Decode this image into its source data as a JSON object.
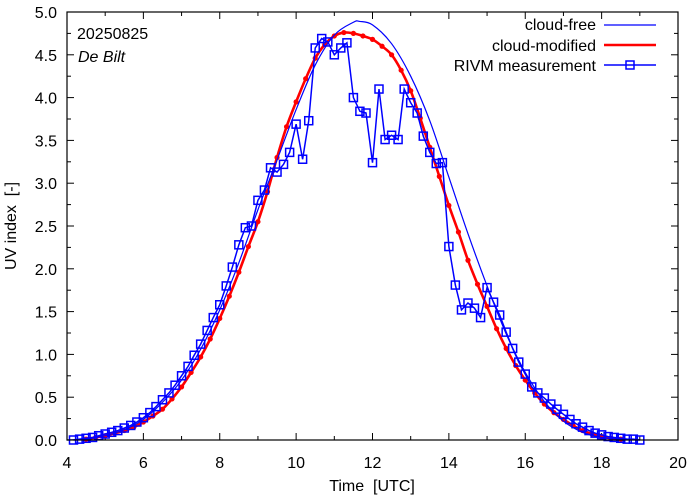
{
  "chart_data": {
    "type": "line",
    "title": "",
    "xlabel": "Time  [UTC]",
    "ylabel": "UV index  [-]",
    "xlim": [
      4,
      20
    ],
    "ylim": [
      0.0,
      5.0
    ],
    "xticks": [
      "4",
      "6",
      "8",
      "10",
      "12",
      "14",
      "16",
      "18",
      "20"
    ],
    "yticks": [
      "0.0",
      "0.5",
      "1.0",
      "1.5",
      "2.0",
      "2.5",
      "3.0",
      "3.5",
      "4.0",
      "4.5",
      "5.0"
    ],
    "grid": false,
    "legend_position": "top-right",
    "annotations": {
      "date": "20250825",
      "location": "De Bilt"
    },
    "colors": {
      "cloud_free": "#0000ff",
      "cloud_modified": "#ff0000",
      "measurement": "#0000ff"
    },
    "series": [
      {
        "name": "cloud-free",
        "style": "line",
        "x": [
          4.0,
          4.5,
          5.0,
          5.5,
          6.0,
          6.5,
          7.0,
          7.5,
          8.0,
          8.5,
          9.0,
          9.5,
          10.0,
          10.5,
          11.0,
          11.5,
          11.67,
          12.0,
          12.5,
          13.0,
          13.5,
          14.0,
          14.5,
          15.0,
          15.5,
          16.0,
          16.5,
          17.0,
          17.5,
          18.0,
          18.5,
          19.0
        ],
        "y": [
          0.0,
          0.01,
          0.05,
          0.12,
          0.24,
          0.44,
          0.7,
          1.06,
          1.52,
          2.07,
          2.69,
          3.27,
          3.86,
          4.38,
          4.73,
          4.88,
          4.89,
          4.85,
          4.63,
          4.25,
          3.73,
          3.07,
          2.41,
          1.8,
          1.24,
          0.79,
          0.45,
          0.22,
          0.09,
          0.03,
          0.01,
          0.0
        ]
      },
      {
        "name": "cloud-modified",
        "style": "line-points",
        "x": [
          4.5,
          4.75,
          5.0,
          5.25,
          5.5,
          5.75,
          6.0,
          6.25,
          6.5,
          6.75,
          7.0,
          7.25,
          7.5,
          7.75,
          8.0,
          8.25,
          8.5,
          8.75,
          9.0,
          9.25,
          9.5,
          9.75,
          10.0,
          10.25,
          10.5,
          10.75,
          11.0,
          11.25,
          11.5,
          11.75,
          12.0,
          12.25,
          12.5,
          12.75,
          13.0,
          13.25,
          13.5,
          13.75,
          14.0,
          14.25,
          14.5,
          14.75,
          15.0,
          15.25,
          15.5,
          15.75,
          16.0,
          16.25,
          16.5,
          16.75,
          17.0,
          17.25,
          17.5,
          17.75,
          18.0,
          18.25,
          18.5
        ],
        "y": [
          0.01,
          0.03,
          0.05,
          0.08,
          0.11,
          0.15,
          0.21,
          0.28,
          0.36,
          0.48,
          0.62,
          0.79,
          0.97,
          1.18,
          1.42,
          1.68,
          1.96,
          2.26,
          2.55,
          2.9,
          3.3,
          3.66,
          3.95,
          4.22,
          4.46,
          4.62,
          4.72,
          4.76,
          4.75,
          4.72,
          4.68,
          4.6,
          4.5,
          4.32,
          4.08,
          3.76,
          3.42,
          3.08,
          2.74,
          2.43,
          2.1,
          1.82,
          1.56,
          1.3,
          1.07,
          0.87,
          0.7,
          0.55,
          0.42,
          0.32,
          0.24,
          0.17,
          0.11,
          0.07,
          0.04,
          0.02,
          0.01
        ]
      },
      {
        "name": "RIVM measurement",
        "style": "line-squares",
        "x": [
          4.17,
          4.33,
          4.5,
          4.67,
          4.83,
          5.0,
          5.17,
          5.33,
          5.5,
          5.67,
          5.83,
          6.0,
          6.17,
          6.33,
          6.5,
          6.67,
          6.83,
          7.0,
          7.17,
          7.33,
          7.5,
          7.67,
          7.83,
          8.0,
          8.17,
          8.33,
          8.5,
          8.67,
          8.83,
          9.0,
          9.17,
          9.33,
          9.5,
          9.67,
          9.83,
          10.0,
          10.17,
          10.33,
          10.5,
          10.67,
          10.83,
          11.0,
          11.17,
          11.33,
          11.5,
          11.67,
          11.83,
          12.0,
          12.17,
          12.33,
          12.5,
          12.67,
          12.83,
          13.0,
          13.17,
          13.33,
          13.5,
          13.67,
          13.83,
          14.0,
          14.17,
          14.33,
          14.5,
          14.67,
          14.83,
          15.0,
          15.17,
          15.33,
          15.5,
          15.67,
          15.83,
          16.0,
          16.17,
          16.33,
          16.5,
          16.67,
          16.83,
          17.0,
          17.17,
          17.33,
          17.5,
          17.67,
          17.83,
          18.0,
          18.17,
          18.33,
          18.5,
          18.67,
          18.83,
          19.0
        ],
        "y": [
          0.0,
          0.01,
          0.02,
          0.03,
          0.05,
          0.07,
          0.09,
          0.11,
          0.14,
          0.17,
          0.21,
          0.26,
          0.32,
          0.39,
          0.47,
          0.55,
          0.64,
          0.75,
          0.86,
          0.99,
          1.12,
          1.28,
          1.43,
          1.58,
          1.8,
          2.02,
          2.28,
          2.48,
          2.5,
          2.8,
          2.92,
          3.18,
          3.13,
          3.22,
          3.36,
          3.69,
          3.28,
          3.73,
          4.58,
          4.69,
          4.65,
          4.5,
          4.58,
          4.64,
          4.0,
          3.84,
          3.82,
          3.24,
          4.1,
          3.51,
          3.56,
          3.51,
          4.1,
          3.94,
          3.82,
          3.55,
          3.36,
          3.23,
          3.24,
          2.26,
          1.81,
          1.52,
          1.6,
          1.54,
          1.43,
          1.78,
          1.61,
          1.46,
          1.26,
          1.07,
          0.91,
          0.77,
          0.62,
          0.55,
          0.49,
          0.42,
          0.36,
          0.3,
          0.24,
          0.19,
          0.15,
          0.11,
          0.08,
          0.06,
          0.04,
          0.03,
          0.02,
          0.01,
          0.01,
          0.0
        ]
      }
    ]
  }
}
